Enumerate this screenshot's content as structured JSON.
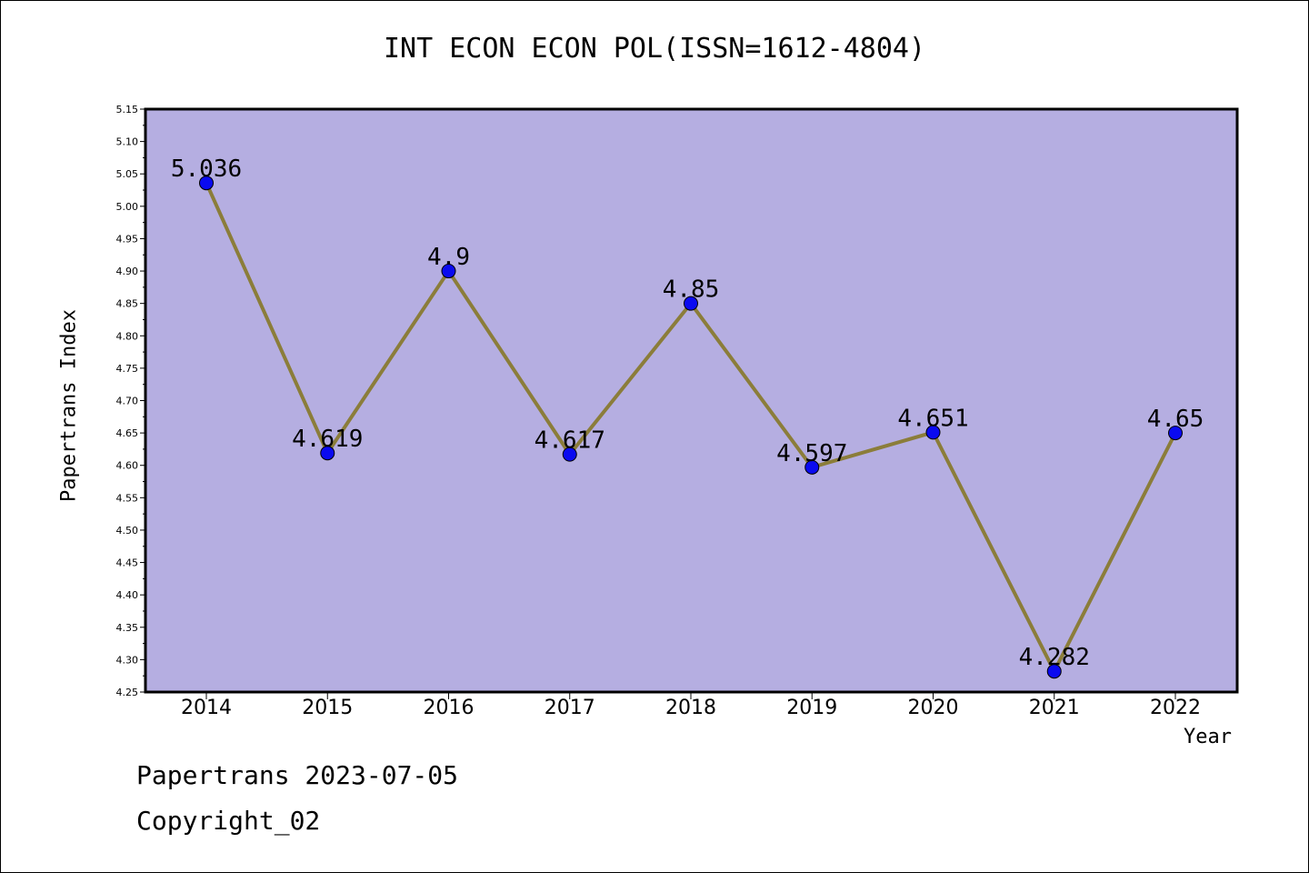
{
  "chart_data": {
    "type": "line",
    "title": "INT ECON ECON POL(ISSN=1612-4804)",
    "xlabel": "Year",
    "ylabel": "Papertrans Index",
    "categories": [
      "2014",
      "2015",
      "2016",
      "2017",
      "2018",
      "2019",
      "2020",
      "2021",
      "2022"
    ],
    "series": [
      {
        "values": [
          5.036,
          4.619,
          4.9,
          4.617,
          4.85,
          4.597,
          4.651,
          4.282,
          4.65
        ],
        "labels": [
          "5.036",
          "4.619",
          "4.9",
          "4.617",
          "4.85",
          "4.597",
          "4.651",
          "4.282",
          "4.65"
        ]
      }
    ],
    "ylim": [
      4.25,
      5.15
    ],
    "yticks": [
      "4.25",
      "4.30",
      "4.35",
      "4.40",
      "4.45",
      "4.50",
      "4.55",
      "4.60",
      "4.65",
      "4.70",
      "4.75",
      "4.80",
      "4.85",
      "4.90",
      "4.95",
      "5.00",
      "5.05",
      "5.10",
      "5.15"
    ],
    "grid": false,
    "colors": {
      "plot_background": "#b5aee1",
      "line": "#8b7d3a",
      "marker": "#0a0af0"
    }
  },
  "footer": {
    "source": "Papertrans 2023-07-05",
    "copyright": "Copyright_02"
  }
}
